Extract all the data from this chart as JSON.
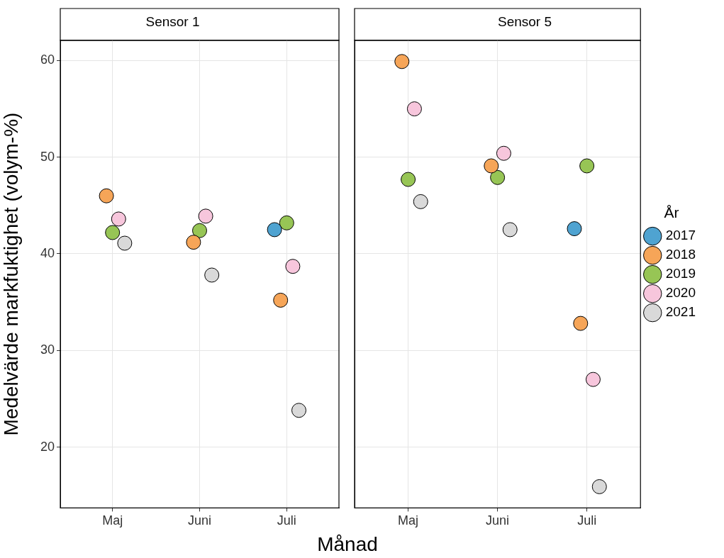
{
  "chart_data": [
    {
      "type": "scatter",
      "title": "Sensor 1",
      "xlabel": "Månad",
      "ylabel": "Medelvärde markfuktighet (volym-%)",
      "categories": [
        "Maj",
        "Juni",
        "Juli"
      ],
      "ylim": [
        13.7,
        62.1
      ],
      "yticks": [
        20,
        30,
        40,
        50,
        60
      ],
      "grid": true,
      "marker": "circle",
      "legend": false,
      "series": [
        {
          "color": "#4fa3d1",
          "values": [
            null,
            null,
            42.5
          ]
        },
        {
          "color": "#f6a558",
          "values": [
            46.0,
            41.2,
            35.2
          ]
        },
        {
          "color": "#97c555",
          "values": [
            42.2,
            42.4,
            43.2
          ]
        },
        {
          "color": "#f7c6dc",
          "values": [
            43.6,
            43.9,
            38.7
          ]
        },
        {
          "color": "#d9d9d9",
          "values": [
            41.1,
            37.8,
            23.8
          ]
        }
      ]
    },
    {
      "type": "scatter",
      "title": "Sensor 5",
      "categories": [
        "Maj",
        "Juni",
        "Juli"
      ],
      "ylim": [
        13.7,
        62.1
      ],
      "yticks": [
        20,
        30,
        40,
        50,
        60
      ],
      "grid": true,
      "marker": "circle",
      "legend": "right",
      "legend_title": "År",
      "tick_labels": "x",
      "series": [
        {
          "name": "2017",
          "color": "#4fa3d1",
          "values": [
            null,
            null,
            42.6
          ]
        },
        {
          "name": "2018",
          "color": "#f6a558",
          "values": [
            59.9,
            49.1,
            32.8
          ]
        },
        {
          "name": "2019",
          "color": "#97c555",
          "values": [
            47.7,
            47.9,
            49.1
          ]
        },
        {
          "name": "2020",
          "color": "#f7c6dc",
          "values": [
            55.0,
            50.4,
            27.0
          ]
        },
        {
          "name": "2021",
          "color": "#d9d9d9",
          "values": [
            45.4,
            42.5,
            15.9
          ]
        }
      ]
    }
  ]
}
